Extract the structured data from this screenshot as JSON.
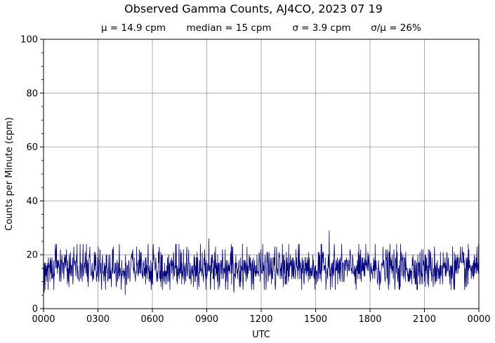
{
  "chart_data": {
    "type": "line",
    "title": "Observed Gamma Counts, AJ4CO, 2023 07 19",
    "subtitle": {
      "mean": "μ = 14.9 cpm",
      "median": "median = 15 cpm",
      "sigma": "σ = 3.9 cpm",
      "cv": "σ/μ = 26%"
    },
    "xlabel": "UTC",
    "ylabel": "Counts per Minute (cpm)",
    "xlim": [
      0,
      1440
    ],
    "ylim": [
      0,
      100
    ],
    "x_ticks": [
      {
        "value": 0,
        "label": "0000"
      },
      {
        "value": 180,
        "label": "0300"
      },
      {
        "value": 360,
        "label": "0600"
      },
      {
        "value": 540,
        "label": "0900"
      },
      {
        "value": 720,
        "label": "1200"
      },
      {
        "value": 900,
        "label": "1500"
      },
      {
        "value": 1080,
        "label": "1800"
      },
      {
        "value": 1260,
        "label": "2100"
      },
      {
        "value": 1440,
        "label": "0000"
      }
    ],
    "y_ticks": [
      {
        "value": 0,
        "label": "0"
      },
      {
        "value": 20,
        "label": "20"
      },
      {
        "value": 40,
        "label": "40"
      },
      {
        "value": 60,
        "label": "60"
      },
      {
        "value": 80,
        "label": "80"
      },
      {
        "value": 100,
        "label": "100"
      }
    ],
    "grid": true,
    "series": [
      {
        "color": "#000080",
        "mean": 14.9,
        "sigma": 3.9,
        "points_per_minute": 1,
        "extremes": [
          {
            "x": 2,
            "y": 6
          },
          {
            "x": 270,
            "y": 5
          },
          {
            "x": 547,
            "y": 26
          },
          {
            "x": 630,
            "y": 6
          },
          {
            "x": 945,
            "y": 29
          },
          {
            "x": 1400,
            "y": 8
          }
        ]
      }
    ]
  }
}
